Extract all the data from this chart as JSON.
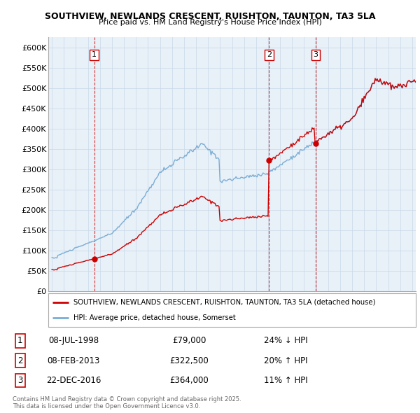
{
  "title1": "SOUTHVIEW, NEWLANDS CRESCENT, RUISHTON, TAUNTON, TA3 5LA",
  "title2": "Price paid vs. HM Land Registry's House Price Index (HPI)",
  "ylabel_ticks": [
    "£0",
    "£50K",
    "£100K",
    "£150K",
    "£200K",
    "£250K",
    "£300K",
    "£350K",
    "£400K",
    "£450K",
    "£500K",
    "£550K",
    "£600K"
  ],
  "ytick_values": [
    0,
    50000,
    100000,
    150000,
    200000,
    250000,
    300000,
    350000,
    400000,
    450000,
    500000,
    550000,
    600000
  ],
  "ylim": [
    0,
    625000
  ],
  "xlim_start": 1994.7,
  "xlim_end": 2025.3,
  "xticks": [
    1995,
    1996,
    1997,
    1998,
    1999,
    2000,
    2001,
    2002,
    2003,
    2004,
    2005,
    2006,
    2007,
    2008,
    2009,
    2010,
    2011,
    2012,
    2013,
    2014,
    2015,
    2016,
    2017,
    2018,
    2019,
    2020,
    2021,
    2022,
    2023,
    2024,
    2025
  ],
  "red_line_color": "#cc0000",
  "blue_line_color": "#7aadd4",
  "plot_bg_color": "#e8f0f8",
  "sale_marker_color": "#cc0000",
  "dashed_line_color": "#cc0000",
  "transaction_labels": [
    "1",
    "2",
    "3"
  ],
  "transaction_dates": [
    1998.52,
    2013.08,
    2016.97
  ],
  "transaction_prices": [
    79000,
    322500,
    364000
  ],
  "transaction_date_strs": [
    "08-JUL-1998",
    "08-FEB-2013",
    "22-DEC-2016"
  ],
  "transaction_price_strs": [
    "£79,000",
    "£322,500",
    "£364,000"
  ],
  "transaction_hpi_strs": [
    "24% ↓ HPI",
    "20% ↑ HPI",
    "11% ↑ HPI"
  ],
  "background_color": "#ffffff",
  "grid_color": "#c8d8e8",
  "footer_text": "Contains HM Land Registry data © Crown copyright and database right 2025.\nThis data is licensed under the Open Government Licence v3.0."
}
